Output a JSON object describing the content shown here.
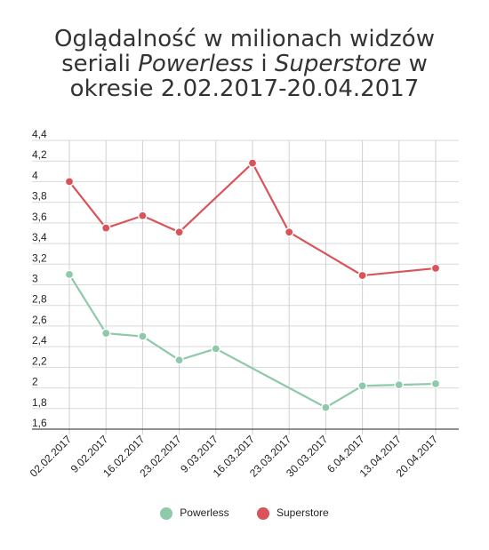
{
  "title": {
    "line1": "Oglądalność w milionach widzów",
    "line2_pre": "seriali ",
    "line2_s1": "Powerless",
    "line2_mid": " i ",
    "line2_s2": "Superstore",
    "line2_post": " w",
    "line3": "okresie 2.02.2017-20.04.2017"
  },
  "chart_data": {
    "type": "line",
    "categories": [
      "02.02.2017",
      "9.02.2017",
      "16.02.2017",
      "23.02.2017",
      "9.03.2017",
      "16.03.2017",
      "23.03.2017",
      "30.03.2017",
      "6.04.2017",
      "13.04.2017",
      "20.04.2017"
    ],
    "ylim": [
      1.6,
      4.4
    ],
    "yticks": [
      "4,4",
      "4,2",
      "4",
      "3,8",
      "3,6",
      "3,4",
      "3,2",
      "3",
      "2,8",
      "2,6",
      "2,4",
      "2,2",
      "2",
      "1,8",
      "1,6"
    ],
    "ytick_values": [
      4.4,
      4.2,
      4.0,
      3.8,
      3.6,
      3.4,
      3.2,
      3.0,
      2.8,
      2.6,
      2.4,
      2.2,
      2.0,
      1.8,
      1.6
    ],
    "grid": true,
    "legend_position": "bottom",
    "series": [
      {
        "name": "Powerless",
        "color": "#8ec9aa",
        "values": [
          3.1,
          2.53,
          2.5,
          2.27,
          2.38,
          null,
          null,
          1.81,
          2.02,
          2.03,
          2.04
        ]
      },
      {
        "name": "Superstore",
        "color": "#d9545a",
        "values": [
          4.0,
          3.55,
          3.67,
          3.51,
          null,
          4.18,
          3.51,
          null,
          3.09,
          null,
          3.16
        ]
      }
    ]
  }
}
